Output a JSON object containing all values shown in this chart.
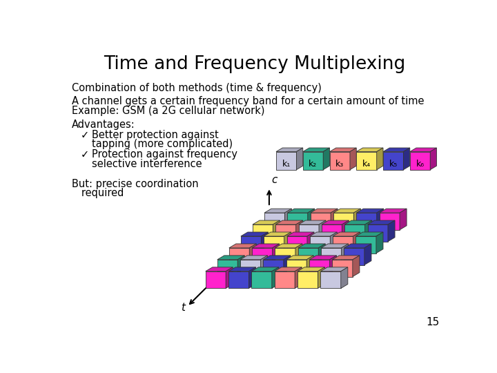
{
  "title": "Time and Frequency Multiplexing",
  "subtitle": "Combination of both methods (time & frequency)",
  "line1": "A channel gets a certain frequency band for a certain amount of time",
  "line2": "Example: GSM (a 2G cellular network)",
  "adv_header": "Advantages:",
  "adv1a": "Better protection against",
  "adv1b": "tapping (more complicated)",
  "adv2a": "Protection against frequency",
  "adv2b": "selective interference",
  "but": "But: precise coordination",
  "but2": "   required",
  "page_num": "15",
  "bg_color": "#ffffff",
  "text_color": "#000000",
  "channel_colors": [
    "#c8c8e0",
    "#33bb99",
    "#ff8888",
    "#ffee66",
    "#4444cc",
    "#ff22cc"
  ],
  "channel_labels": [
    "k₁",
    "k₂",
    "k₃",
    "k₄",
    "k₅",
    "k₆"
  ],
  "grid_colors_pattern": [
    [
      "#ff22cc",
      "#4444cc",
      "#33bb99",
      "#ff8888",
      "#ffee66",
      "#c8c8e0"
    ],
    [
      "#33bb99",
      "#c8c8e0",
      "#4444cc",
      "#ffee66",
      "#ff22cc",
      "#ff8888"
    ],
    [
      "#ff8888",
      "#ff22cc",
      "#ffee66",
      "#33bb99",
      "#c8c8e0",
      "#4444cc"
    ],
    [
      "#4444cc",
      "#ffee66",
      "#ff22cc",
      "#c8c8e0",
      "#ff8888",
      "#33bb99"
    ],
    [
      "#ffee66",
      "#ff8888",
      "#c8c8e0",
      "#ff22cc",
      "#33bb99",
      "#4444cc"
    ],
    [
      "#c8c8e0",
      "#33bb99",
      "#ff8888",
      "#ffee66",
      "#4444cc",
      "#ff22cc"
    ]
  ]
}
